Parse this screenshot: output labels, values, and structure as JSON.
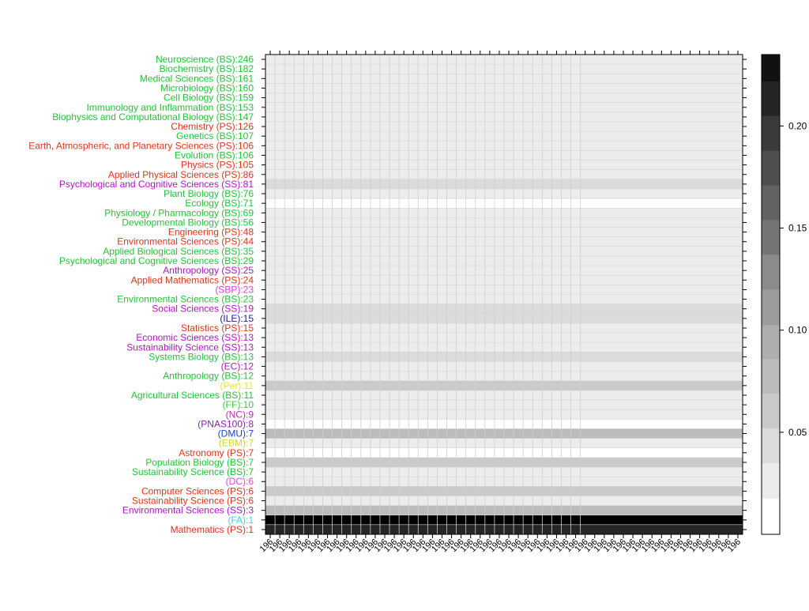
{
  "chart_data": {
    "type": "heatmap",
    "title": "",
    "xlabel": "",
    "ylabel": "",
    "x_tick_label": "196",
    "x_column_count": 50,
    "colorbar": {
      "range": [
        0.0,
        0.235
      ],
      "ticks": [
        "0.05",
        "0.10",
        "0.15",
        "0.20"
      ],
      "tick_values": [
        0.05,
        0.1,
        0.15,
        0.2
      ],
      "bin_edges": [
        0.0,
        0.0175,
        0.035,
        0.052,
        0.069,
        0.086,
        0.1025,
        0.12,
        0.137,
        0.154,
        0.171,
        0.188,
        0.205,
        0.222,
        0.235
      ],
      "bin_colors": [
        "#ffffff",
        "#ececec",
        "#dbdbdb",
        "#cacaca",
        "#bcbcbc",
        "#aeaeae",
        "#9c9c9c",
        "#8b8b8b",
        "#757575",
        "#626262",
        "#4e4e4e",
        "#3a3a3a",
        "#252525",
        "#111111",
        "#000000"
      ]
    },
    "field_colors": {
      "BS": "#22c43a",
      "PS": "#e0341c",
      "SS": "#b313c9",
      "SBP": "#d63fd6",
      "ILE": "#1b1b8f",
      "EC": "#b313c9",
      "Per": "#e6e636",
      "FF": "#33d433",
      "NC": "#c422c4",
      "PNAS100": "#8a1fb8",
      "DMU": "#1a3fd6",
      "EBM": "#d6d636",
      "DC": "#e63fe6",
      "FA": "#36d6e6"
    },
    "rows": [
      {
        "label": "Neuroscience (BS):246",
        "field": "BS",
        "value": 0.02
      },
      {
        "label": "Biochemistry (BS):182",
        "field": "BS",
        "value": 0.02
      },
      {
        "label": "Medical Sciences (BS):161",
        "field": "BS",
        "value": 0.02
      },
      {
        "label": "Microbiology (BS):160",
        "field": "BS",
        "value": 0.02
      },
      {
        "label": "Cell Biology (BS):159",
        "field": "BS",
        "value": 0.02
      },
      {
        "label": "Immunology and Inflammation (BS):153",
        "field": "BS",
        "value": 0.02
      },
      {
        "label": "Biophysics and Computational Biology (BS):147",
        "field": "BS",
        "value": 0.02
      },
      {
        "label": "Chemistry (PS):126",
        "field": "PS",
        "value": 0.02
      },
      {
        "label": "Genetics (BS):107",
        "field": "BS",
        "value": 0.02
      },
      {
        "label": "Earth, Atmospheric, and Planetary Sciences (PS):106",
        "field": "PS",
        "value": 0.02
      },
      {
        "label": "Evolution (BS):106",
        "field": "BS",
        "value": 0.02
      },
      {
        "label": "Physics (PS):105",
        "field": "PS",
        "value": 0.02
      },
      {
        "label": "Applied Physical Sciences (PS):86",
        "field": "PS",
        "value": 0.02
      },
      {
        "label": "Psychological and Cognitive Sciences (SS):81",
        "field": "SS",
        "value": 0.04
      },
      {
        "label": "Plant Biology (BS):76",
        "field": "BS",
        "value": 0.02
      },
      {
        "label": "Ecology (BS):71",
        "field": "BS",
        "value": 0.0
      },
      {
        "label": "Physiology / Pharmacology (BS):69",
        "field": "BS",
        "value": 0.02
      },
      {
        "label": "Developmental Biology (BS):56",
        "field": "BS",
        "value": 0.02
      },
      {
        "label": "Engineering (PS):48",
        "field": "PS",
        "value": 0.02
      },
      {
        "label": "Environmental Sciences (PS):44",
        "field": "PS",
        "value": 0.02
      },
      {
        "label": "Applied Biological Sciences (BS):35",
        "field": "BS",
        "value": 0.02
      },
      {
        "label": "Psychological and Cognitive Sciences (BS):29",
        "field": "BS",
        "value": 0.02
      },
      {
        "label": "Anthropology (SS):25",
        "field": "SS",
        "value": 0.02
      },
      {
        "label": "Applied Mathematics (PS):24",
        "field": "PS",
        "value": 0.02
      },
      {
        "label": "(SBP):23",
        "field": "SBP",
        "value": 0.02
      },
      {
        "label": "Environmental Sciences (BS):23",
        "field": "BS",
        "value": 0.02
      },
      {
        "label": "Social Sciences (SS):19",
        "field": "SS",
        "value": 0.04
      },
      {
        "label": "(ILE):15",
        "field": "ILE",
        "value": 0.04
      },
      {
        "label": "Statistics (PS):15",
        "field": "PS",
        "value": 0.02
      },
      {
        "label": "Economic Sciences (SS):13",
        "field": "SS",
        "value": 0.02
      },
      {
        "label": "Sustainability Science (SS):13",
        "field": "SS",
        "value": 0.02
      },
      {
        "label": "Systems Biology (BS):13",
        "field": "BS",
        "value": 0.04
      },
      {
        "label": "(EC):12",
        "field": "EC",
        "value": 0.02
      },
      {
        "label": "Anthropology (BS):12",
        "field": "BS",
        "value": 0.02
      },
      {
        "label": "(Per):11",
        "field": "Per",
        "value": 0.06
      },
      {
        "label": "Agricultural Sciences (BS):11",
        "field": "BS",
        "value": 0.02
      },
      {
        "label": "(FF):10",
        "field": "FF",
        "value": 0.02
      },
      {
        "label": "(NC):9",
        "field": "NC",
        "value": 0.02
      },
      {
        "label": "(PNAS100):8",
        "field": "PNAS100",
        "value": 0.0
      },
      {
        "label": "(DMU):7",
        "field": "DMU",
        "value": 0.08
      },
      {
        "label": "(EBM):7",
        "field": "EBM",
        "value": 0.02
      },
      {
        "label": "Astronomy (PS):7",
        "field": "PS",
        "value": 0.0
      },
      {
        "label": "Population Biology (BS):7",
        "field": "BS",
        "value": 0.06
      },
      {
        "label": "Sustainability Science (BS):7",
        "field": "BS",
        "value": 0.02
      },
      {
        "label": "(DC):6",
        "field": "DC",
        "value": 0.02
      },
      {
        "label": "Computer Sciences (PS):6",
        "field": "PS",
        "value": 0.06
      },
      {
        "label": "Sustainability Science (PS):6",
        "field": "PS",
        "value": 0.02
      },
      {
        "label": "Environmental Sciences (SS):3",
        "field": "SS",
        "value": 0.08
      },
      {
        "label": "(FA):1",
        "field": "FA",
        "value": 0.235
      },
      {
        "label": "Mathematics (PS):1",
        "field": "PS",
        "value": 0.205
      }
    ]
  }
}
